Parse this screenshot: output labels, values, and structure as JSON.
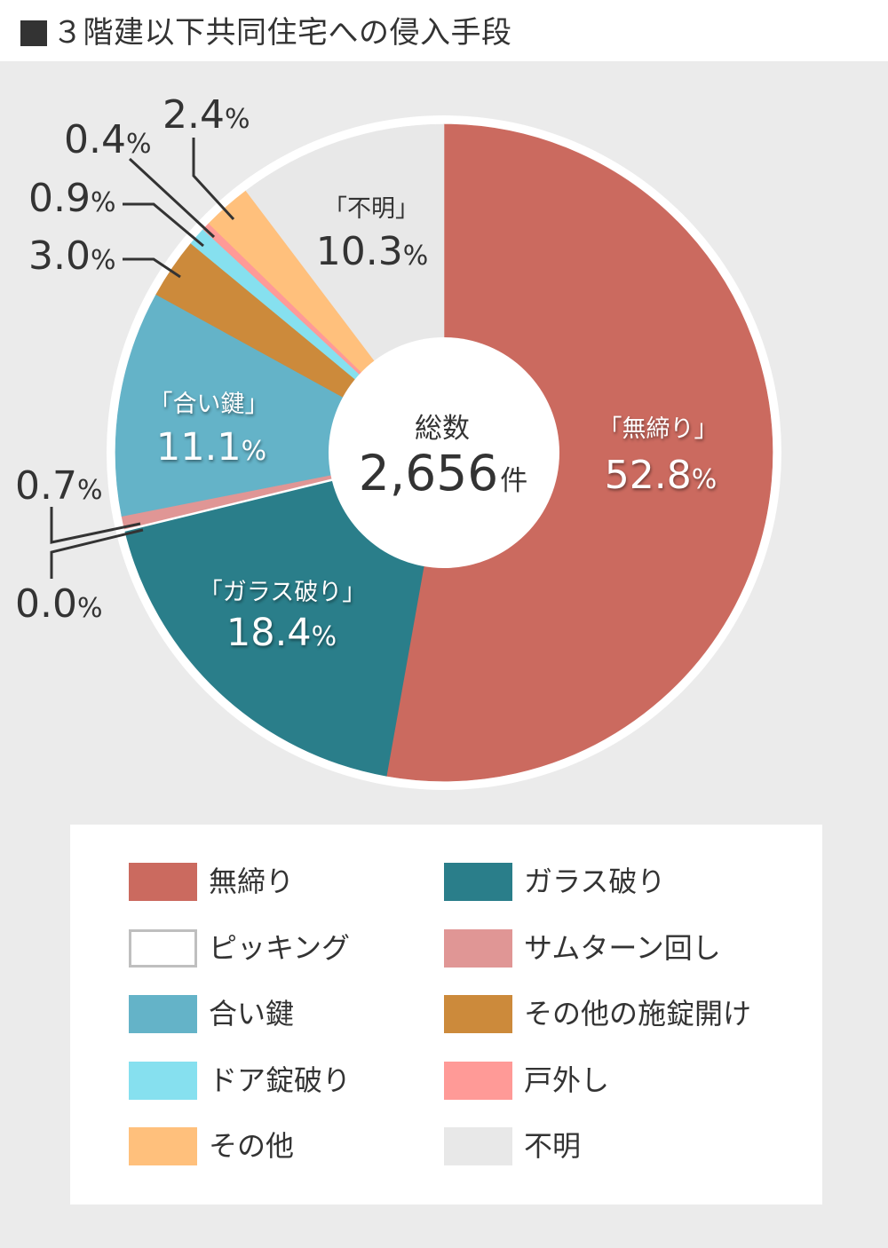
{
  "header": {
    "title": "３階建以下共同住宅への侵入手段"
  },
  "chart_data": {
    "type": "pie",
    "title": "■３階建以下共同住宅への侵入手段",
    "xlabel": "",
    "ylabel": "",
    "unit": "%",
    "legend_position": "bottom",
    "total": {
      "label": "総数",
      "value": "2,656",
      "unit": "件"
    },
    "categories": [
      "無締り",
      "ガラス破り",
      "ピッキング",
      "サムターン回し",
      "合い鍵",
      "その他の施錠開け",
      "ドア錠破り",
      "戸外し",
      "その他",
      "不明"
    ],
    "values": [
      52.8,
      18.4,
      0.0,
      0.7,
      11.1,
      3.0,
      0.9,
      0.4,
      2.4,
      10.3
    ],
    "slices": [
      {
        "name": "無締り",
        "value": 52.8,
        "display": "52.8",
        "callout": "「無締り」",
        "color": "#CB6A5F"
      },
      {
        "name": "ガラス破り",
        "value": 18.4,
        "display": "18.4",
        "callout": "「ガラス破り」",
        "color": "#2A7E8A"
      },
      {
        "name": "ピッキング",
        "value": 0.0,
        "display": "0.0",
        "color": "#FFFFFF"
      },
      {
        "name": "サムターン回し",
        "value": 0.7,
        "display": "0.7",
        "color": "#E09695"
      },
      {
        "name": "合い鍵",
        "value": 11.1,
        "display": "11.1",
        "callout": "「合い鍵」",
        "color": "#64B3C8"
      },
      {
        "name": "その他の施錠開け",
        "value": 3.0,
        "display": "3.0",
        "color": "#CC8A3B"
      },
      {
        "name": "ドア錠破り",
        "value": 0.9,
        "display": "0.9",
        "color": "#86E0EF"
      },
      {
        "name": "戸外し",
        "value": 0.4,
        "display": "0.4",
        "color": "#FF9A97"
      },
      {
        "name": "その他",
        "value": 2.4,
        "display": "2.4",
        "color": "#FFC07C"
      },
      {
        "name": "不明",
        "value": 10.3,
        "display": "10.3",
        "callout": "「不明」",
        "color": "#E8E8E8"
      }
    ]
  }
}
